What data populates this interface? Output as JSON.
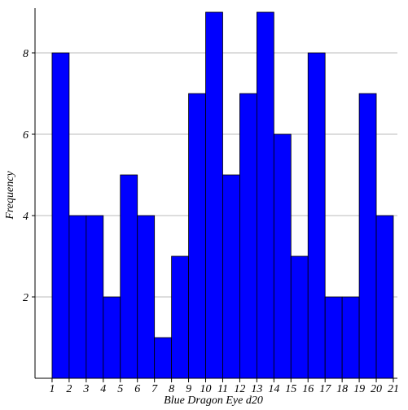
{
  "chart_data": {
    "type": "histogram",
    "x_label": "Blue Dragon Eye d20",
    "y_label": "Frequency",
    "bins": [
      1,
      2,
      3,
      4,
      5,
      6,
      7,
      8,
      9,
      10,
      11,
      12,
      13,
      14,
      15,
      16,
      17,
      18,
      19,
      20,
      21
    ],
    "values": [
      8,
      4,
      4,
      2,
      5,
      4,
      1,
      3,
      7,
      9,
      5,
      7,
      9,
      6,
      3,
      8,
      2,
      2,
      7,
      4
    ],
    "color": "#0000ff",
    "xlim": [
      0,
      21
    ],
    "ylim": [
      0,
      9.1
    ],
    "xticks": [
      1,
      2,
      3,
      4,
      5,
      6,
      7,
      8,
      9,
      10,
      11,
      12,
      13,
      14,
      15,
      16,
      17,
      18,
      19,
      20,
      21
    ],
    "yticks": [
      2,
      4,
      6,
      8
    ],
    "grid": true
  }
}
